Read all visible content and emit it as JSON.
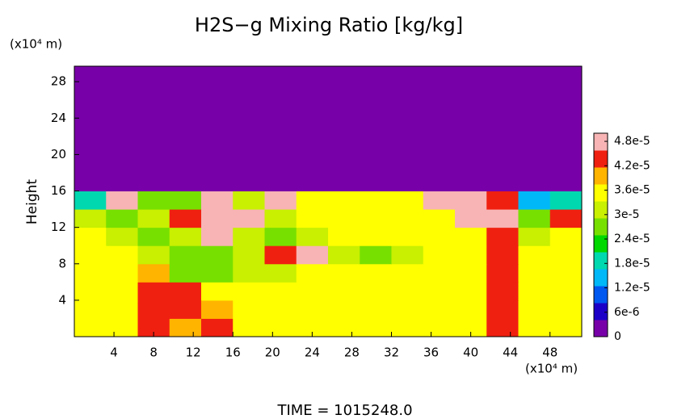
{
  "chart_data": {
    "type": "heatmap",
    "title": "H2S−g Mixing Ratio [kg/kg]",
    "ylabel": "Height",
    "y_unit": "(x10⁴ m)",
    "x_unit": "(x10⁴ m)",
    "footer": "TIME = 1015248.0",
    "xlim": [
      0,
      51.2
    ],
    "ylim": [
      0,
      29.7
    ],
    "xticks": [
      4,
      8,
      12,
      16,
      20,
      24,
      28,
      32,
      36,
      40,
      44,
      48
    ],
    "yticks": [
      4,
      8,
      12,
      16,
      20,
      24,
      28
    ],
    "xbins": [
      0,
      3.2,
      6.4,
      9.6,
      12.8,
      16,
      19.2,
      22.4,
      25.6,
      28.8,
      32,
      35.2,
      38.4,
      41.6,
      44.8,
      48,
      51.2
    ],
    "ybins": [
      0,
      2,
      4,
      6,
      8,
      10,
      12,
      14,
      16,
      29.7
    ],
    "z": [
      [
        3.6e-05,
        3.7e-05,
        4.2e-05,
        4e-05,
        4.3e-05,
        3.7e-05,
        3.7e-05,
        3.7e-05,
        3.7e-05,
        3.7e-05,
        3.7e-05,
        3.7e-05,
        3.7e-05,
        4.4e-05,
        3.7e-05,
        3.7e-05
      ],
      [
        3.6e-05,
        3.6e-05,
        4.3e-05,
        4.5e-05,
        3.9e-05,
        3.6e-05,
        3.6e-05,
        3.6e-05,
        3.6e-05,
        3.6e-05,
        3.6e-05,
        3.6e-05,
        3.6e-05,
        4.4e-05,
        3.6e-05,
        3.7e-05
      ],
      [
        3.6e-05,
        3.6e-05,
        4.2e-05,
        4.4e-05,
        3.6e-05,
        3.4e-05,
        3.6e-05,
        3.6e-05,
        3.6e-05,
        3.6e-05,
        3.6e-05,
        3.6e-05,
        3.6e-05,
        4.3e-05,
        3.6e-05,
        3.6e-05
      ],
      [
        3.6e-05,
        3.6e-05,
        4e-05,
        2.8e-05,
        2.6e-05,
        3e-05,
        3.2e-05,
        3.5e-05,
        3.5e-05,
        3.6e-05,
        3.6e-05,
        3.6e-05,
        3.6e-05,
        4.2e-05,
        3.6e-05,
        3.6e-05
      ],
      [
        3.5e-05,
        3.6e-05,
        3.2e-05,
        2.6e-05,
        2.8e-05,
        3e-05,
        4.4e-05,
        4.9e-05,
        3e-05,
        2.8e-05,
        3.2e-05,
        3.5e-05,
        3.6e-05,
        4.3e-05,
        3.6e-05,
        3.6e-05
      ],
      [
        3.5e-05,
        3e-05,
        2.6e-05,
        3e-05,
        4.9e-05,
        3e-05,
        2.5e-05,
        3.2e-05,
        3.5e-05,
        3.5e-05,
        3.5e-05,
        3.6e-05,
        3.7e-05,
        4.2e-05,
        3e-05,
        3.5e-05
      ],
      [
        3.2e-05,
        2.8e-05,
        3e-05,
        4.5e-05,
        4.9e-05,
        4.9e-05,
        3.3e-05,
        3.5e-05,
        3.5e-05,
        3.5e-05,
        3.5e-05,
        3.4e-05,
        4.9e-05,
        4.9e-05,
        2.6e-05,
        4.2e-05
      ],
      [
        2e-05,
        4.9e-05,
        2.8e-05,
        2.5e-05,
        4.9e-05,
        3e-05,
        4.9e-05,
        3.4e-05,
        3.5e-05,
        3.5e-05,
        3.5e-05,
        4.9e-05,
        4.9e-05,
        4.2e-05,
        1.5e-05,
        2e-05
      ],
      [
        0,
        0,
        0,
        0,
        0,
        0,
        0,
        0,
        0,
        0,
        0,
        0,
        0,
        0,
        0,
        0
      ]
    ],
    "clim": [
      0,
      5e-05
    ],
    "colors": [
      "#7800a8",
      "#1c00c8",
      "#0058f0",
      "#00b8f8",
      "#00d8b0",
      "#00d800",
      "#78e000",
      "#c8f000",
      "#ffff00",
      "#ffb400",
      "#f02010",
      "#f8b4b4"
    ],
    "cticks": [
      0,
      {
        "value": 6e-06,
        "label": "6e-6"
      },
      {
        "value": 1.2e-05,
        "label": "1.2e-5"
      },
      {
        "value": 1.8e-05,
        "label": "1.8e-5"
      },
      {
        "value": 2.4e-05,
        "label": "2.4e-5"
      },
      {
        "value": 3e-05,
        "label": "3e-5"
      },
      {
        "value": 3.6e-05,
        "label": "3.6e-5"
      },
      {
        "value": 4.2e-05,
        "label": "4.2e-5"
      },
      {
        "value": 4.8e-05,
        "label": "4.8e-5"
      }
    ]
  }
}
